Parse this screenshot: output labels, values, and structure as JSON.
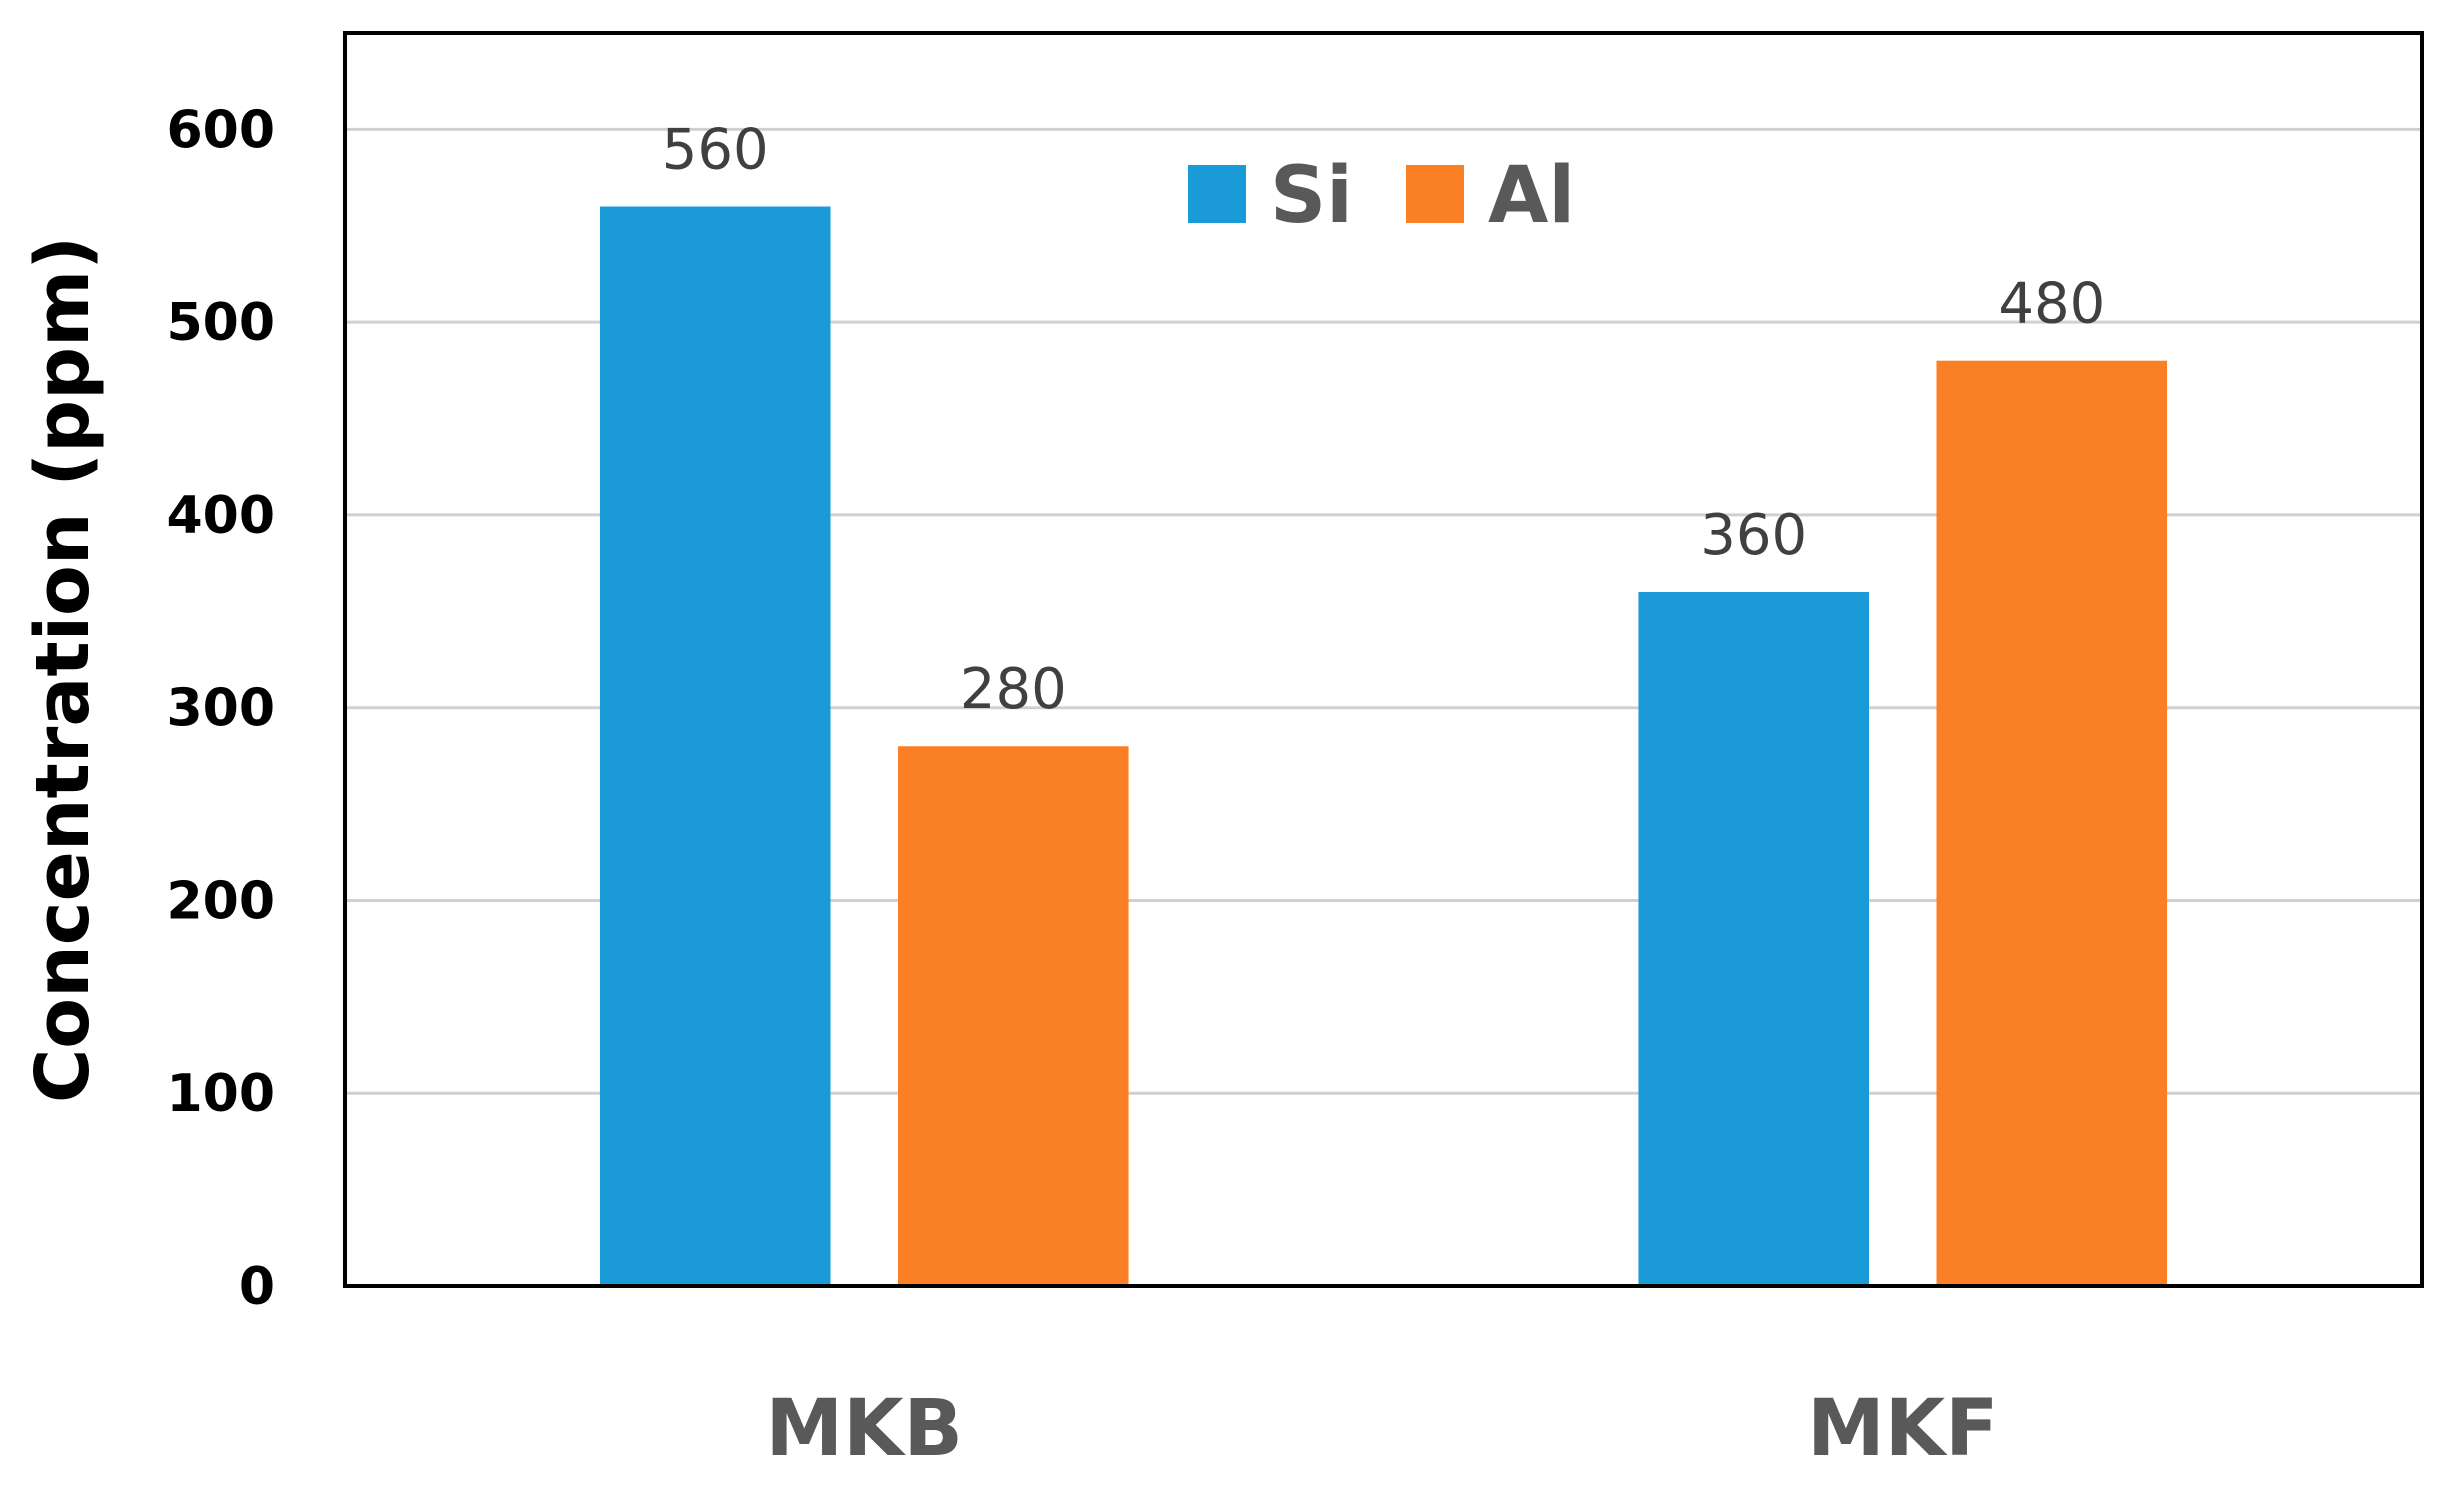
{
  "chart_data": {
    "type": "bar",
    "categories": [
      "MKB",
      "MKF"
    ],
    "series": [
      {
        "name": "Si",
        "values": [
          560,
          360
        ],
        "color": "#1A9AD7"
      },
      {
        "name": "Al",
        "values": [
          280,
          480
        ],
        "color": "#FB7F24"
      }
    ],
    "title": "",
    "xlabel": "",
    "ylabel": "Concentration (ppm)",
    "ylim": [
      0,
      650
    ],
    "yticks": [
      0,
      100,
      200,
      300,
      400,
      500,
      600
    ],
    "grid": true,
    "legend_position": "top-center",
    "data_labels": true
  }
}
